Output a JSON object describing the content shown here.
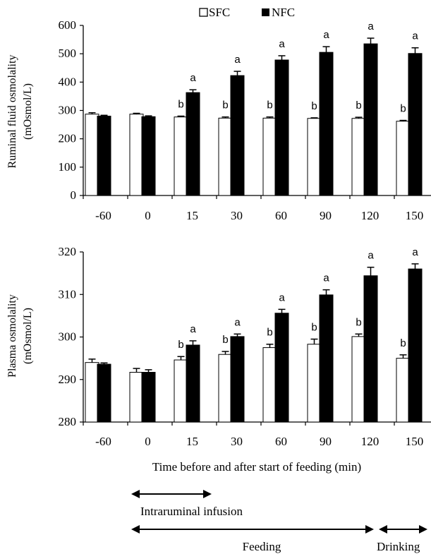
{
  "colors": {
    "sfc_fill": "#ffffff",
    "nfc_fill": "#000000",
    "stroke": "#000000",
    "background": "#ffffff"
  },
  "legend": {
    "position": "top-center",
    "items": [
      {
        "label": "SFC",
        "swatch": "white-square"
      },
      {
        "label": "NFC",
        "swatch": "black-square"
      }
    ]
  },
  "xlabel": "Time before and after start of feeding (min)",
  "timeline": [
    {
      "label": "Intraruminal infusion",
      "start": "0",
      "end": "15",
      "arrow": "double-headed"
    },
    {
      "label": "Feeding",
      "start": "0",
      "end": "120",
      "arrow": "double-headed"
    },
    {
      "label": "Drinking",
      "start": "120",
      "end": "150",
      "arrow": "double-headed"
    }
  ],
  "chart_data": [
    {
      "type": "bar",
      "ylabel": [
        "Ruminal fluid osmolality",
        "(mOsmol/L)"
      ],
      "ylim": [
        0,
        600
      ],
      "yticks": [
        0,
        100,
        200,
        300,
        400,
        500,
        600
      ],
      "categories": [
        "-60",
        "0",
        "15",
        "30",
        "60",
        "90",
        "120",
        "150"
      ],
      "series": [
        {
          "name": "SFC",
          "values": [
            287,
            287,
            277,
            273,
            273,
            272,
            272,
            262
          ],
          "errors": [
            5,
            3,
            3,
            4,
            4,
            2,
            4,
            3
          ],
          "labels": [
            "",
            "",
            "b",
            "b",
            "b",
            "b",
            "b",
            "b"
          ]
        },
        {
          "name": "NFC",
          "values": [
            280,
            278,
            363,
            423,
            478,
            505,
            535,
            501
          ],
          "errors": [
            3,
            3,
            10,
            15,
            15,
            20,
            20,
            20
          ],
          "labels": [
            "",
            "",
            "a",
            "a",
            "a",
            "a",
            "a",
            "a"
          ]
        }
      ],
      "grid": false
    },
    {
      "type": "bar",
      "ylabel": [
        "Plasma osmolality",
        "(mOsmol/L)"
      ],
      "ylim": [
        280,
        320
      ],
      "yticks": [
        280,
        290,
        300,
        310,
        320
      ],
      "categories": [
        "-60",
        "0",
        "15",
        "30",
        "60",
        "90",
        "120",
        "150"
      ],
      "series": [
        {
          "name": "SFC",
          "values": [
            294.0,
            291.7,
            294.6,
            295.9,
            297.5,
            298.3,
            300.1,
            295.0
          ],
          "errors": [
            0.8,
            0.9,
            0.8,
            0.7,
            0.8,
            1.2,
            0.6,
            0.8
          ],
          "labels": [
            "",
            "",
            "b",
            "b",
            "b",
            "b",
            "b",
            "b"
          ]
        },
        {
          "name": "NFC",
          "values": [
            293.6,
            291.7,
            298.1,
            300.1,
            305.6,
            309.9,
            314.4,
            316.0
          ],
          "errors": [
            0.3,
            0.6,
            1.0,
            0.6,
            0.9,
            1.2,
            2.0,
            1.2
          ],
          "labels": [
            "",
            "",
            "a",
            "a",
            "a",
            "a",
            "a",
            "a"
          ]
        }
      ],
      "grid": false
    }
  ]
}
